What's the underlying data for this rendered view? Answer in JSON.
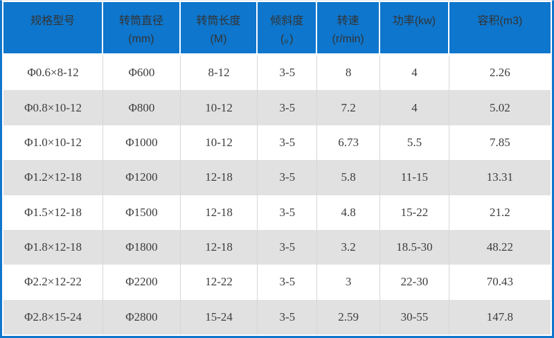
{
  "chart_data": {
    "type": "table",
    "columns": [
      {
        "lines": [
          "规格型号"
        ]
      },
      {
        "lines": [
          "转筒直径",
          "(mm)"
        ]
      },
      {
        "lines": [
          "转筒长度",
          "(M)"
        ]
      },
      {
        "lines": [
          "倾斜度",
          "(。)"
        ]
      },
      {
        "lines": [
          "转速",
          "(r/min)"
        ]
      },
      {
        "lines": [
          "功率(kw)"
        ]
      },
      {
        "lines": [
          "容积(m3)"
        ]
      }
    ],
    "rows": [
      [
        "Φ0.6×8-12",
        "Φ600",
        "8-12",
        "3-5",
        "8",
        "4",
        "2.26"
      ],
      [
        "Φ0.8×10-12",
        "Φ800",
        "10-12",
        "3-5",
        "7.2",
        "4",
        "5.02"
      ],
      [
        "Φ1.0×10-12",
        "Φ1000",
        "10-12",
        "3-5",
        "6.73",
        "5.5",
        "7.85"
      ],
      [
        "Φ1.2×12-18",
        "Φ1200",
        "12-18",
        "3-5",
        "5.8",
        "11-15",
        "13.31"
      ],
      [
        "Φ1.5×12-18",
        "Φ1500",
        "12-18",
        "3-5",
        "4.8",
        "15-22",
        "21.2"
      ],
      [
        "Φ1.8×12-18",
        "Φ1800",
        "12-18",
        "3-5",
        "3.2",
        "18.5-30",
        "48.22"
      ],
      [
        "Φ2.2×12-22",
        "Φ2200",
        "12-22",
        "3-5",
        "3",
        "22-30",
        "70.43"
      ],
      [
        "Φ2.8×15-24",
        "Φ2800",
        "15-24",
        "3-5",
        "2.59",
        "30-55",
        "147.8"
      ]
    ],
    "column_widths_pct": [
      18.25,
      14.125,
      14.125,
      10.875,
      11.5,
      12.625,
      18.5
    ],
    "colors": {
      "header_bg": "#0e76cc",
      "header_text": "#333333",
      "body_text": "#3c3c3c",
      "row_bg": "#ffffff",
      "row_alt_bg": "#e1e1e1",
      "divider": "#d6d6d6",
      "border": "#0e76cc"
    },
    "layout": {
      "grid": "on",
      "zebra_striping": true
    }
  }
}
